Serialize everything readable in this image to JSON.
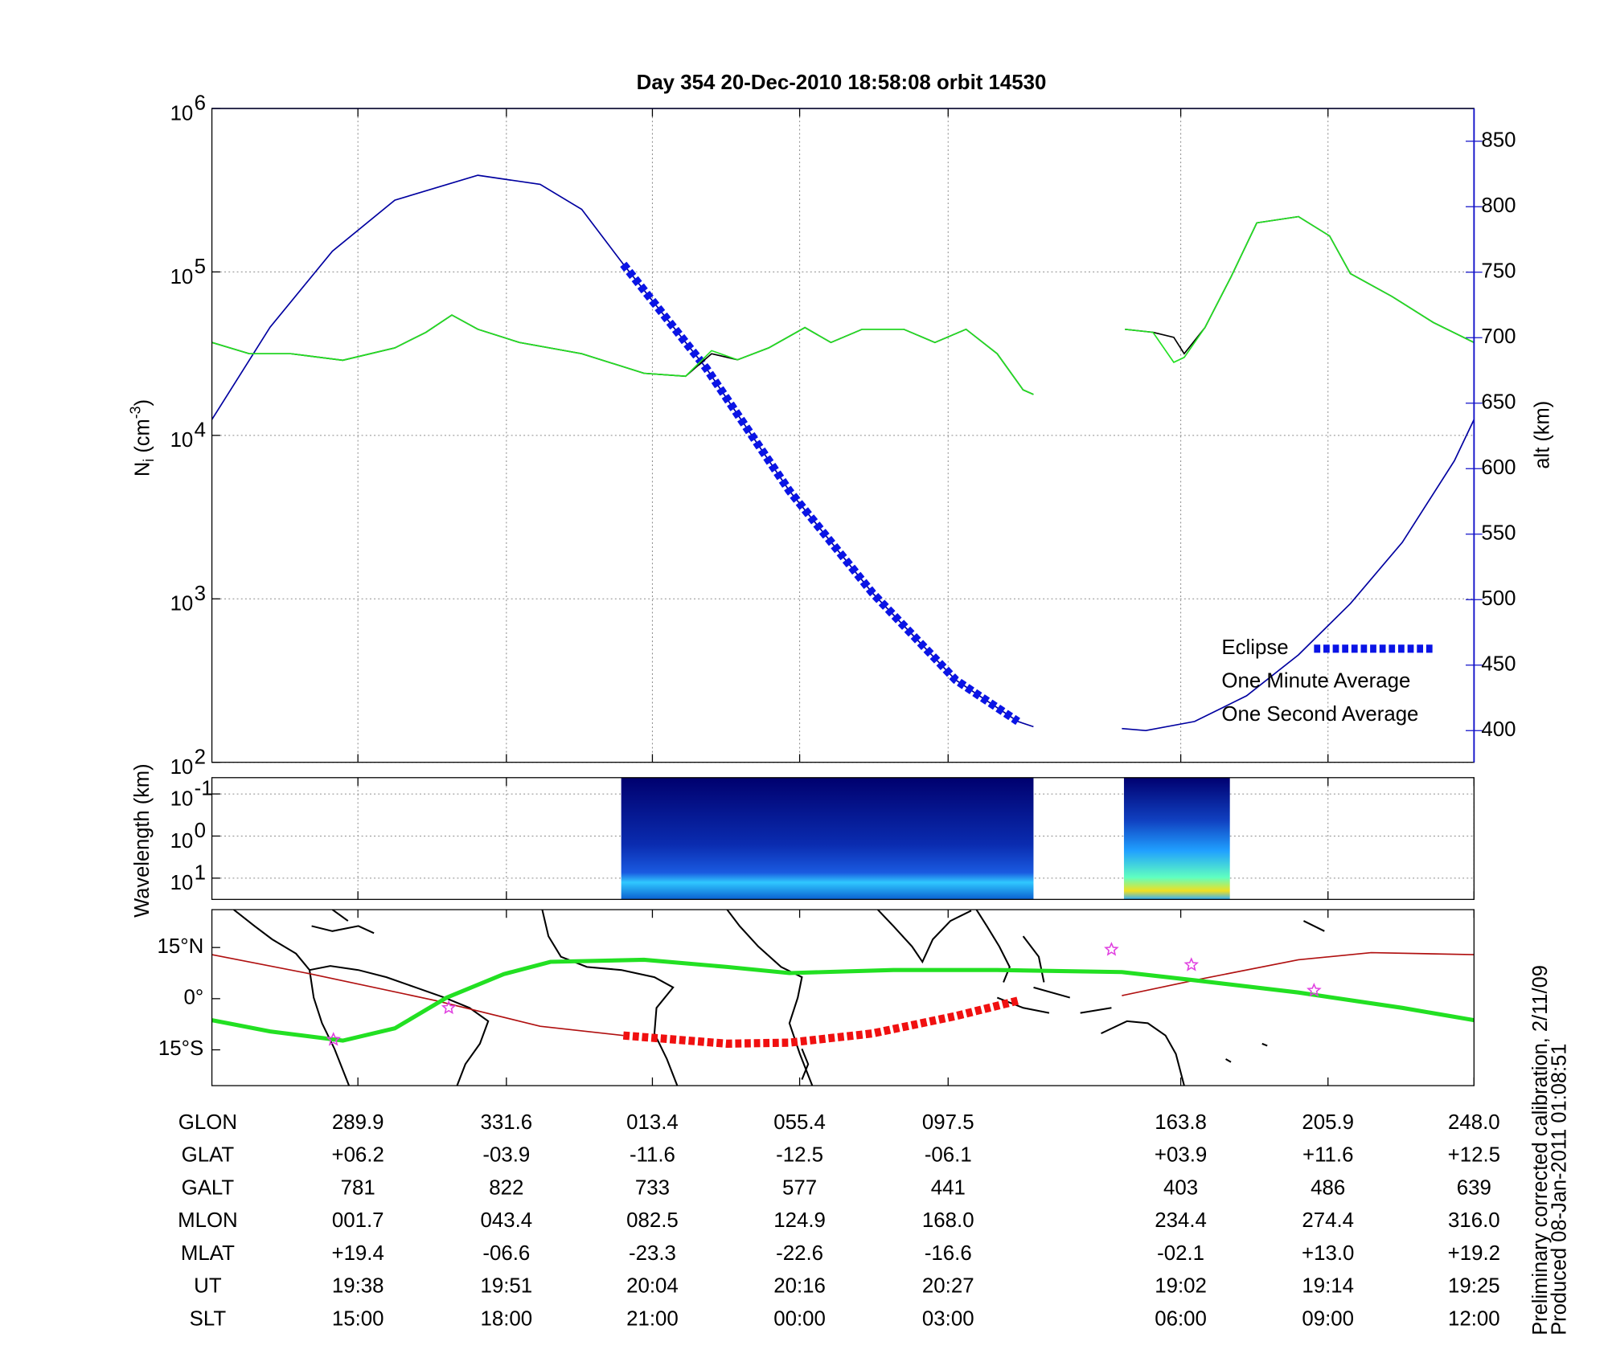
{
  "chart_data": [
    {
      "type": "line",
      "title": "Day 354  20-Dec-2010 18:58:08   orbit 14530",
      "ylabel_parts": [
        "N",
        "i",
        " (cm",
        "-3",
        ")"
      ],
      "y2label": "alt (km)",
      "xlim": [
        0,
        102
      ],
      "xticks": [
        11.8,
        23.8,
        35.6,
        47.5,
        59.5,
        78.3,
        90.2,
        102
      ],
      "ylog": true,
      "ylim": [
        100,
        1000000
      ],
      "yticks": [
        {
          "value": 100,
          "label": "10",
          "exponent": "2"
        },
        {
          "value": 1000,
          "label": "10",
          "exponent": "3"
        },
        {
          "value": 10000,
          "label": "10",
          "exponent": "4"
        },
        {
          "value": 100000,
          "label": "10",
          "exponent": "5"
        },
        {
          "value": 1000000,
          "label": "10",
          "exponent": "6"
        }
      ],
      "y2lim": [
        375.8,
        875
      ],
      "y2ticks": [
        400,
        450,
        500,
        550,
        600,
        650,
        700,
        750,
        800,
        850
      ],
      "y2color": "#1010c8",
      "grid": true,
      "legend": "lower right",
      "series": [
        {
          "color": "#0000a0",
          "axis": "y2",
          "x": [
            0,
            4.7,
            9.74,
            14.78,
            21.49,
            26.53,
            29.89,
            33.25,
            39.96,
            46.68,
            53.39,
            60.11,
            65.14,
            66.4,
            70,
            73.54,
            75.47,
            79.42,
            83.62,
            87.81,
            92.01,
            96.21,
            100.41,
            102
          ],
          "values": [
            637.5,
            708,
            766,
            805,
            824,
            817,
            798,
            756,
            676.6,
            583,
            505,
            438.7,
            407,
            403,
            null,
            401.6,
            400,
            407,
            426.6,
            457.8,
            497,
            543.8,
            606,
            637.5
          ]
        },
        {
          "name": "Eclipse",
          "color": "#0a14e6",
          "axis": "y2",
          "linestyle": "dashed",
          "x": [
            33.25,
            39.96,
            46.68,
            53.39,
            60.11,
            65.14
          ],
          "values": [
            756,
            676.6,
            583,
            505,
            438.7,
            407
          ]
        },
        {
          "name": "One Minute Average",
          "color": "#000000",
          "x": [
            0,
            3.02,
            6.38,
            10.58,
            14.78,
            17.29,
            19.39,
            21.49,
            24.85,
            29.89,
            34.92,
            38.28,
            40.38,
            42.48,
            45.0,
            47.93,
            50.03,
            52.55,
            55.91,
            58.43,
            60.95,
            63.47,
            65.56,
            66.4,
            70,
            73.79,
            76.06,
            77.74,
            78.58,
            80.26,
            82.36,
            84.45,
            87.81,
            90.33,
            92.01,
            95.37,
            98.72,
            102
          ],
          "values": [
            37000,
            31600,
            31600,
            28800,
            34300,
            42700,
            54500,
            44600,
            37000,
            31600,
            24000,
            23000,
            31600,
            29000,
            34300,
            45700,
            37000,
            44600,
            44600,
            37000,
            44600,
            31600,
            19000,
            17800,
            null,
            44600,
            42700,
            39800,
            31600,
            45700,
            93300,
            199500,
            218000,
            166000,
            97700,
            70800,
            49000,
            37000
          ]
        },
        {
          "name": "One Second Average",
          "color": "#22e022",
          "x": [
            0,
            3.02,
            6.38,
            10.58,
            14.78,
            17.29,
            19.39,
            21.49,
            24.85,
            29.89,
            34.92,
            38.28,
            40.38,
            42.48,
            45.0,
            47.93,
            50.03,
            52.55,
            55.91,
            58.43,
            60.95,
            63.47,
            65.56,
            66.4,
            70,
            73.79,
            76.06,
            77.74,
            78.58,
            80.26,
            82.36,
            84.45,
            87.81,
            90.33,
            92.01,
            95.37,
            98.72,
            102
          ],
          "values": [
            37000,
            31600,
            31600,
            28800,
            34300,
            42700,
            54500,
            44600,
            37000,
            31600,
            24000,
            23000,
            33000,
            29000,
            34300,
            45700,
            37000,
            44600,
            44600,
            37000,
            44600,
            31600,
            19000,
            17800,
            null,
            44600,
            42700,
            28000,
            30000,
            45700,
            93300,
            199500,
            218000,
            166000,
            97700,
            70800,
            49000,
            37000
          ]
        }
      ]
    },
    {
      "type": "spectrogram",
      "ylabel": "Wavelength (km)",
      "xlim": [
        0,
        102
      ],
      "xticks": [
        11.8,
        23.8,
        35.6,
        47.5,
        59.5,
        78.3,
        90.2,
        102
      ],
      "ylog": true,
      "ylim": [
        32,
        0.041
      ],
      "yticks": [
        {
          "value": 0.1,
          "label": "10",
          "exponent": "-1"
        },
        {
          "value": 1,
          "label": "10",
          "exponent": "0"
        },
        {
          "value": 10,
          "label": "10",
          "exponent": "1"
        }
      ],
      "grid": true,
      "segments": [
        [
          33.08,
          66.4
        ],
        [
          73.71,
          82.27
        ]
      ]
    },
    {
      "type": "line",
      "xlim": [
        0,
        102
      ],
      "xticks": [
        11.8,
        23.8,
        35.6,
        47.5,
        59.5,
        78.3,
        90.2,
        102
      ],
      "ylim": [
        -25.5,
        26.1
      ],
      "yticks": [
        {
          "value": 15,
          "label": "15°N"
        },
        {
          "value": 0,
          "label": "0°"
        },
        {
          "value": -15,
          "label": "15°S"
        }
      ],
      "grid": false,
      "series": [
        {
          "color": "#b01010",
          "x": [
            0,
            8.06,
            18.13,
            26.53,
            33.25,
            70,
            73.54,
            79.42,
            87.81,
            93.69,
            102
          ],
          "values": [
            12.9,
            7.2,
            -0.6,
            -8.1,
            -10.8,
            null,
            0.9,
            5.4,
            11.4,
            13.5,
            12.9
          ]
        },
        {
          "color": "#22e022",
          "x": [
            0,
            4.7,
            10.58,
            14.78,
            18.97,
            23.59,
            27.37,
            34.92,
            41.64,
            46.68,
            55.07,
            63.47,
            73.54,
            79.42,
            87.81,
            96.21,
            102
          ],
          "values": [
            -6.3,
            -9.6,
            -12.3,
            -8.7,
            0.3,
            7.2,
            10.8,
            11.4,
            9.3,
            7.5,
            8.4,
            8.4,
            7.8,
            5.4,
            1.8,
            -2.7,
            -6.3
          ]
        },
        {
          "color": "#f01010",
          "linestyle": "dashed",
          "x": [
            33.25,
            41.64,
            46.68,
            53.39,
            60.11,
            65.14
          ],
          "values": [
            -10.8,
            -13.2,
            -12.9,
            -10.2,
            -5.1,
            -0.6
          ]
        },
        {
          "color": "#e040e0",
          "marker": "star",
          "x": [
            9.82,
            19.14,
            72.7,
            79.16,
            89.07
          ],
          "values": [
            -12.0,
            -2.7,
            14.4,
            9.9,
            2.4
          ]
        }
      ]
    }
  ],
  "ephemeris": {
    "row_labels": [
      "GLON",
      "GLAT",
      "GALT",
      "MLON",
      "MLAT",
      "UT",
      "SLT"
    ],
    "rows": [
      [
        "289.9",
        "331.6",
        "013.4",
        "055.4",
        "097.5",
        "163.8",
        "205.9",
        "248.0"
      ],
      [
        "+06.2",
        "-03.9",
        "-11.6",
        "-12.5",
        "-06.1",
        "+03.9",
        "+11.6",
        "+12.5"
      ],
      [
        "781",
        "822",
        "733",
        "577",
        "441",
        "403",
        "486",
        "639"
      ],
      [
        "001.7",
        "043.4",
        "082.5",
        "124.9",
        "168.0",
        "234.4",
        "274.4",
        "316.0"
      ],
      [
        "+19.4",
        "-06.6",
        "-23.3",
        "-22.6",
        "-16.6",
        "-02.1",
        "+13.0",
        "+19.2"
      ],
      [
        "19:38",
        "19:51",
        "20:04",
        "20:16",
        "20:27",
        "19:02",
        "19:14",
        "19:25"
      ],
      [
        "15:00",
        "18:00",
        "21:00",
        "00:00",
        "03:00",
        "06:00",
        "09:00",
        "12:00"
      ]
    ]
  },
  "footnotes": [
    "Preliminary corrected calibration, 2/11/09",
    "Produced 08-Jan-2011 01:08:51"
  ]
}
